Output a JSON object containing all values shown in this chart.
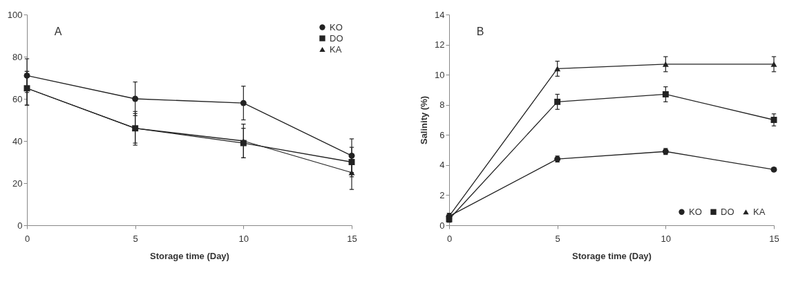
{
  "chart_data": [
    {
      "type": "line",
      "xlabel": "Storage time (Day)",
      "annotations": [
        "A"
      ],
      "x": [
        0,
        5,
        10,
        15
      ],
      "xlim": [
        0,
        15
      ],
      "xticks": [
        0,
        5,
        10,
        15
      ],
      "ylim": [
        0,
        100
      ],
      "yticks": [
        0,
        20,
        40,
        60,
        80,
        100
      ],
      "grid": false,
      "legend": "top right",
      "line_style": "solid",
      "series": [
        {
          "name": "KO",
          "color": "#222222",
          "marker": "circle",
          "values": [
            71,
            60,
            58,
            33
          ],
          "errors": [
            8,
            8,
            8,
            8
          ]
        },
        {
          "name": "DO",
          "color": "#222222",
          "marker": "square",
          "values": [
            65,
            46,
            39,
            30
          ],
          "errors": [
            8,
            7,
            7,
            7
          ]
        },
        {
          "name": "KA",
          "color": "#222222",
          "marker": "triangle",
          "values": [
            65,
            46,
            40,
            25
          ],
          "errors": [
            8,
            8,
            8,
            8
          ]
        }
      ]
    },
    {
      "type": "line",
      "xlabel": "Storage time (Day)",
      "ylabel": "Salinity  (%)",
      "annotations": [
        "B"
      ],
      "x": [
        0,
        5,
        10,
        15
      ],
      "xlim": [
        0,
        15
      ],
      "xticks": [
        0,
        5,
        10,
        15
      ],
      "ylim": [
        0,
        14
      ],
      "yticks": [
        0,
        2,
        4,
        6,
        8,
        10,
        12,
        14
      ],
      "grid": false,
      "legend": "bottom right",
      "line_style": "solid",
      "series": [
        {
          "name": "KO",
          "color": "#222222",
          "marker": "circle",
          "values": [
            0.6,
            4.4,
            4.9,
            3.7
          ],
          "errors": [
            0.2,
            0.2,
            0.2,
            0.1
          ]
        },
        {
          "name": "DO",
          "color": "#222222",
          "marker": "square",
          "values": [
            0.4,
            8.2,
            8.7,
            7.0
          ],
          "errors": [
            0.2,
            0.5,
            0.5,
            0.4
          ]
        },
        {
          "name": "KA",
          "color": "#222222",
          "marker": "triangle",
          "values": [
            0.6,
            10.4,
            10.7,
            10.7
          ],
          "errors": [
            0.2,
            0.5,
            0.5,
            0.5
          ]
        }
      ]
    }
  ]
}
